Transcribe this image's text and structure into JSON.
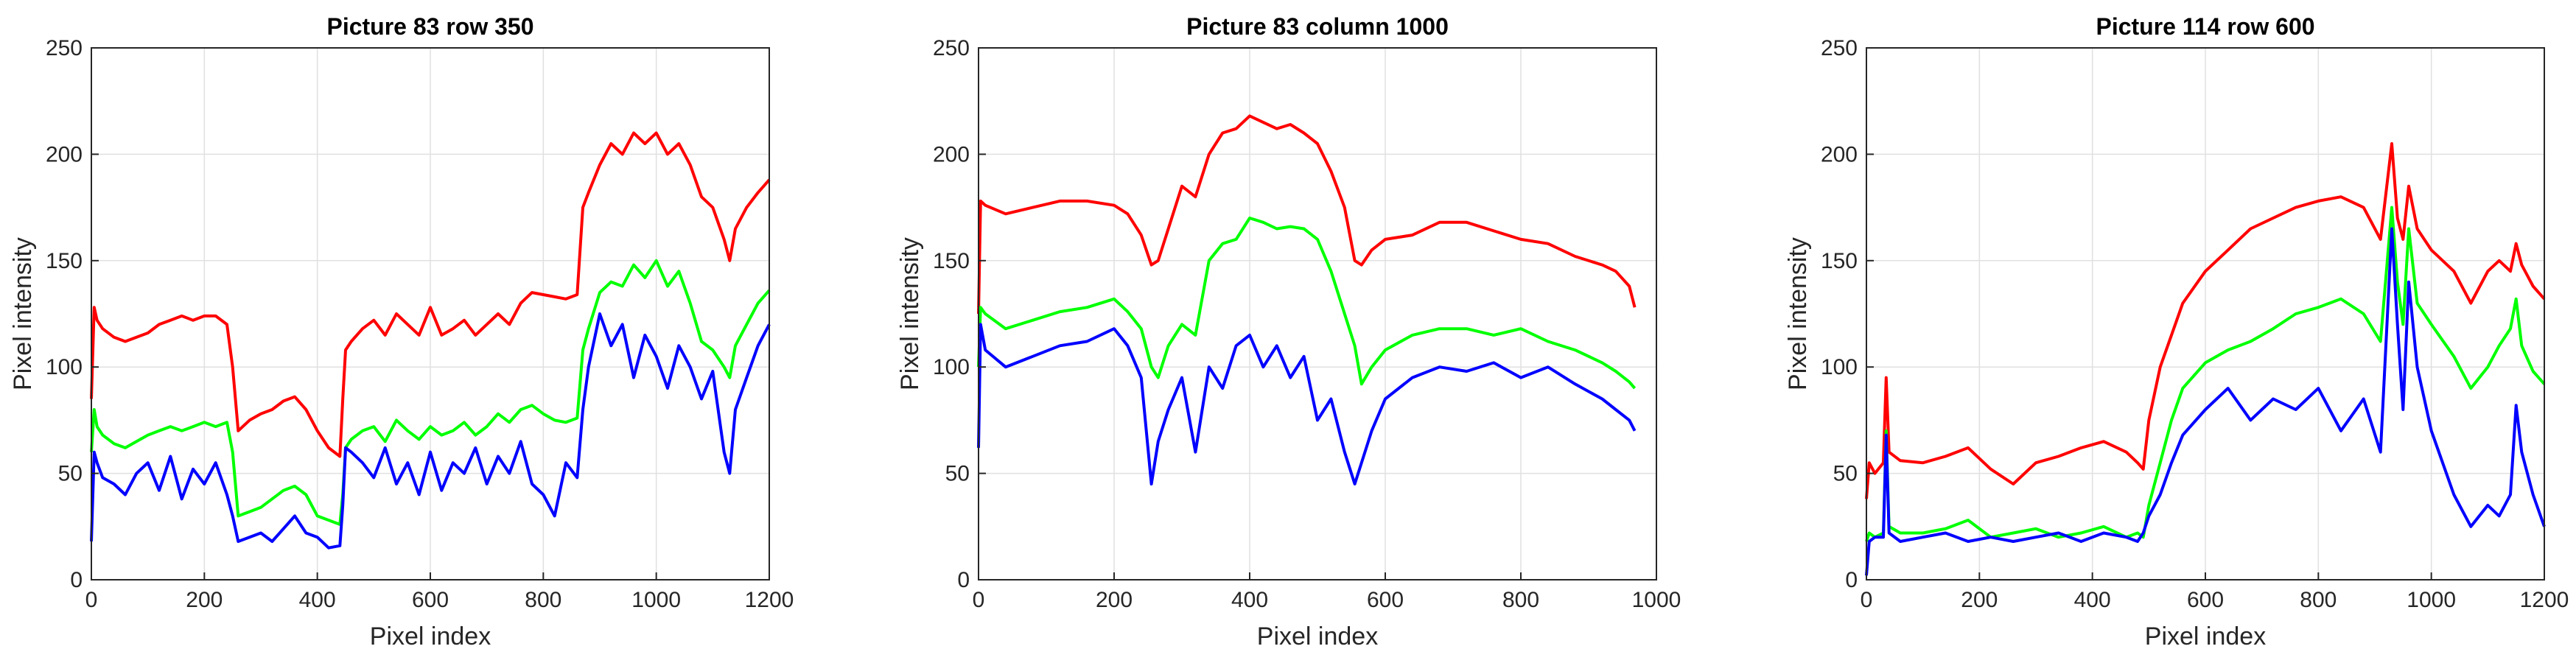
{
  "colors": {
    "red": "#ff0000",
    "green": "#00ff00",
    "blue": "#0000ff",
    "grid": "#e0e0e0",
    "axis": "#262626"
  },
  "chart_data": [
    {
      "type": "line",
      "title": "Picture 83 row 350",
      "xlabel": "Pixel index",
      "ylabel": "Pixel intensity",
      "xlim": [
        0,
        1200
      ],
      "ylim": [
        0,
        250
      ],
      "xticks": [
        0,
        200,
        400,
        600,
        800,
        1000,
        1200
      ],
      "yticks": [
        0,
        50,
        100,
        150,
        200,
        250
      ],
      "grid": true,
      "series": [
        {
          "color": "red",
          "x": [
            0,
            5,
            10,
            20,
            40,
            60,
            80,
            100,
            120,
            140,
            160,
            180,
            200,
            220,
            240,
            250,
            260,
            280,
            300,
            320,
            340,
            360,
            380,
            400,
            420,
            440,
            445,
            450,
            460,
            480,
            500,
            520,
            540,
            560,
            580,
            600,
            620,
            640,
            660,
            680,
            700,
            720,
            740,
            760,
            780,
            800,
            820,
            840,
            860,
            870,
            880,
            900,
            920,
            940,
            960,
            980,
            1000,
            1020,
            1040,
            1060,
            1080,
            1100,
            1120,
            1130,
            1140,
            1160,
            1180,
            1200
          ],
          "y": [
            85,
            128,
            122,
            118,
            114,
            112,
            114,
            116,
            120,
            122,
            124,
            122,
            124,
            124,
            120,
            100,
            70,
            75,
            78,
            80,
            84,
            86,
            80,
            70,
            62,
            58,
            85,
            108,
            112,
            118,
            122,
            115,
            125,
            120,
            115,
            128,
            115,
            118,
            122,
            115,
            120,
            125,
            120,
            130,
            135,
            134,
            133,
            132,
            134,
            175,
            182,
            195,
            205,
            200,
            210,
            205,
            210,
            200,
            205,
            195,
            180,
            175,
            160,
            150,
            165,
            175,
            182,
            188
          ]
        },
        {
          "color": "green",
          "x": [
            0,
            5,
            10,
            20,
            40,
            60,
            80,
            100,
            120,
            140,
            160,
            180,
            200,
            220,
            240,
            250,
            260,
            280,
            300,
            320,
            340,
            360,
            380,
            400,
            420,
            440,
            445,
            450,
            460,
            480,
            500,
            520,
            540,
            560,
            580,
            600,
            620,
            640,
            660,
            680,
            700,
            720,
            740,
            760,
            780,
            800,
            820,
            840,
            860,
            870,
            880,
            900,
            920,
            940,
            960,
            980,
            1000,
            1020,
            1040,
            1060,
            1080,
            1100,
            1120,
            1130,
            1140,
            1160,
            1180,
            1200
          ],
          "y": [
            60,
            80,
            72,
            68,
            64,
            62,
            65,
            68,
            70,
            72,
            70,
            72,
            74,
            72,
            74,
            60,
            30,
            32,
            34,
            38,
            42,
            44,
            40,
            30,
            28,
            26,
            40,
            62,
            66,
            70,
            72,
            65,
            75,
            70,
            66,
            72,
            68,
            70,
            74,
            68,
            72,
            78,
            74,
            80,
            82,
            78,
            75,
            74,
            76,
            108,
            118,
            135,
            140,
            138,
            148,
            142,
            150,
            138,
            145,
            130,
            112,
            108,
            100,
            95,
            110,
            120,
            130,
            136
          ]
        },
        {
          "color": "blue",
          "x": [
            0,
            5,
            10,
            20,
            40,
            60,
            80,
            100,
            120,
            140,
            160,
            180,
            200,
            220,
            240,
            250,
            260,
            280,
            300,
            320,
            340,
            360,
            380,
            400,
            420,
            440,
            445,
            450,
            460,
            480,
            500,
            520,
            540,
            560,
            580,
            600,
            620,
            640,
            660,
            680,
            700,
            720,
            740,
            760,
            780,
            800,
            820,
            840,
            860,
            870,
            880,
            900,
            920,
            940,
            960,
            980,
            1000,
            1020,
            1040,
            1060,
            1080,
            1100,
            1120,
            1130,
            1140,
            1160,
            1180,
            1200
          ],
          "y": [
            18,
            60,
            55,
            48,
            45,
            40,
            50,
            55,
            42,
            58,
            38,
            52,
            45,
            55,
            40,
            30,
            18,
            20,
            22,
            18,
            24,
            30,
            22,
            20,
            15,
            16,
            35,
            62,
            60,
            55,
            48,
            62,
            45,
            55,
            40,
            60,
            42,
            55,
            50,
            62,
            45,
            58,
            50,
            65,
            45,
            40,
            30,
            55,
            48,
            80,
            100,
            125,
            110,
            120,
            95,
            115,
            105,
            90,
            110,
            100,
            85,
            98,
            60,
            50,
            80,
            95,
            110,
            120
          ]
        }
      ]
    },
    {
      "type": "line",
      "title": "Picture 83 column 1000",
      "xlabel": "Pixel index",
      "ylabel": "Pixel intensity",
      "xlim": [
        0,
        1000
      ],
      "ylim": [
        0,
        250
      ],
      "xticks": [
        0,
        200,
        400,
        600,
        800,
        1000
      ],
      "yticks": [
        0,
        50,
        100,
        150,
        200,
        250
      ],
      "grid": true,
      "series": [
        {
          "color": "red",
          "x": [
            0,
            3,
            10,
            40,
            80,
            120,
            160,
            200,
            220,
            240,
            255,
            265,
            280,
            300,
            320,
            340,
            360,
            380,
            400,
            420,
            440,
            460,
            480,
            500,
            520,
            540,
            555,
            565,
            580,
            600,
            640,
            680,
            720,
            760,
            800,
            840,
            880,
            920,
            940,
            960,
            968
          ],
          "y": [
            125,
            178,
            176,
            172,
            175,
            178,
            178,
            176,
            172,
            162,
            148,
            150,
            165,
            185,
            180,
            200,
            210,
            212,
            218,
            215,
            212,
            214,
            210,
            205,
            192,
            175,
            150,
            148,
            155,
            160,
            162,
            168,
            168,
            164,
            160,
            158,
            152,
            148,
            145,
            138,
            128
          ]
        },
        {
          "color": "green",
          "x": [
            0,
            3,
            10,
            40,
            80,
            120,
            160,
            200,
            220,
            240,
            255,
            265,
            280,
            300,
            320,
            340,
            360,
            380,
            400,
            420,
            440,
            460,
            480,
            500,
            520,
            540,
            555,
            565,
            580,
            600,
            640,
            680,
            720,
            760,
            800,
            840,
            880,
            920,
            940,
            960,
            968
          ],
          "y": [
            100,
            128,
            125,
            118,
            122,
            126,
            128,
            132,
            126,
            118,
            100,
            95,
            110,
            120,
            115,
            150,
            158,
            160,
            170,
            168,
            165,
            166,
            165,
            160,
            145,
            125,
            110,
            92,
            100,
            108,
            115,
            118,
            118,
            115,
            118,
            112,
            108,
            102,
            98,
            93,
            90
          ]
        },
        {
          "color": "blue",
          "x": [
            0,
            3,
            10,
            40,
            80,
            120,
            160,
            200,
            220,
            240,
            255,
            265,
            280,
            300,
            320,
            340,
            360,
            380,
            400,
            420,
            440,
            460,
            480,
            500,
            520,
            540,
            555,
            565,
            580,
            600,
            640,
            680,
            720,
            760,
            800,
            840,
            880,
            920,
            940,
            960,
            968
          ],
          "y": [
            62,
            120,
            108,
            100,
            105,
            110,
            112,
            118,
            110,
            95,
            45,
            65,
            80,
            95,
            60,
            100,
            90,
            110,
            115,
            100,
            110,
            95,
            105,
            75,
            85,
            60,
            45,
            55,
            70,
            85,
            95,
            100,
            98,
            102,
            95,
            100,
            92,
            85,
            80,
            75,
            70
          ]
        }
      ]
    },
    {
      "type": "line",
      "title": "Picture 114 row 600",
      "xlabel": "Pixel index",
      "ylabel": "Pixel intensity",
      "xlim": [
        0,
        1200
      ],
      "ylim": [
        0,
        250
      ],
      "xticks": [
        0,
        200,
        400,
        600,
        800,
        1000,
        1200
      ],
      "yticks": [
        0,
        50,
        100,
        150,
        200,
        250
      ],
      "grid": true,
      "series": [
        {
          "color": "red",
          "x": [
            0,
            5,
            15,
            30,
            35,
            40,
            60,
            100,
            140,
            180,
            220,
            260,
            300,
            340,
            380,
            420,
            460,
            480,
            490,
            500,
            520,
            540,
            560,
            600,
            640,
            680,
            720,
            760,
            800,
            840,
            880,
            910,
            930,
            940,
            950,
            960,
            975,
            1000,
            1040,
            1070,
            1100,
            1120,
            1140,
            1150,
            1160,
            1180,
            1200
          ],
          "y": [
            38,
            55,
            50,
            55,
            95,
            60,
            56,
            55,
            58,
            62,
            52,
            45,
            55,
            58,
            62,
            65,
            60,
            55,
            52,
            75,
            100,
            115,
            130,
            145,
            155,
            165,
            170,
            175,
            178,
            180,
            175,
            160,
            205,
            170,
            160,
            185,
            165,
            155,
            145,
            130,
            145,
            150,
            145,
            158,
            148,
            138,
            132
          ]
        },
        {
          "color": "green",
          "x": [
            0,
            5,
            15,
            30,
            35,
            40,
            60,
            100,
            140,
            180,
            220,
            260,
            300,
            340,
            380,
            420,
            460,
            480,
            490,
            500,
            520,
            540,
            560,
            600,
            640,
            680,
            720,
            760,
            800,
            840,
            880,
            910,
            930,
            940,
            950,
            960,
            975,
            1000,
            1040,
            1070,
            1100,
            1120,
            1140,
            1150,
            1160,
            1180,
            1200
          ],
          "y": [
            18,
            22,
            20,
            22,
            70,
            25,
            22,
            22,
            24,
            28,
            20,
            22,
            24,
            20,
            22,
            25,
            20,
            22,
            20,
            35,
            55,
            75,
            90,
            102,
            108,
            112,
            118,
            125,
            128,
            132,
            125,
            112,
            175,
            140,
            120,
            165,
            130,
            120,
            105,
            90,
            100,
            110,
            118,
            132,
            110,
            98,
            92
          ]
        },
        {
          "color": "blue",
          "x": [
            0,
            5,
            15,
            30,
            35,
            40,
            60,
            100,
            140,
            180,
            220,
            260,
            300,
            340,
            380,
            420,
            460,
            480,
            490,
            500,
            520,
            540,
            560,
            600,
            640,
            680,
            720,
            760,
            800,
            840,
            880,
            910,
            930,
            940,
            950,
            960,
            975,
            1000,
            1040,
            1070,
            1100,
            1120,
            1140,
            1150,
            1160,
            1180,
            1200
          ],
          "y": [
            2,
            18,
            20,
            20,
            68,
            22,
            18,
            20,
            22,
            18,
            20,
            18,
            20,
            22,
            18,
            22,
            20,
            18,
            22,
            30,
            40,
            55,
            68,
            80,
            90,
            75,
            85,
            80,
            90,
            70,
            85,
            60,
            165,
            120,
            80,
            140,
            100,
            70,
            40,
            25,
            35,
            30,
            40,
            82,
            60,
            40,
            25
          ]
        }
      ]
    }
  ]
}
